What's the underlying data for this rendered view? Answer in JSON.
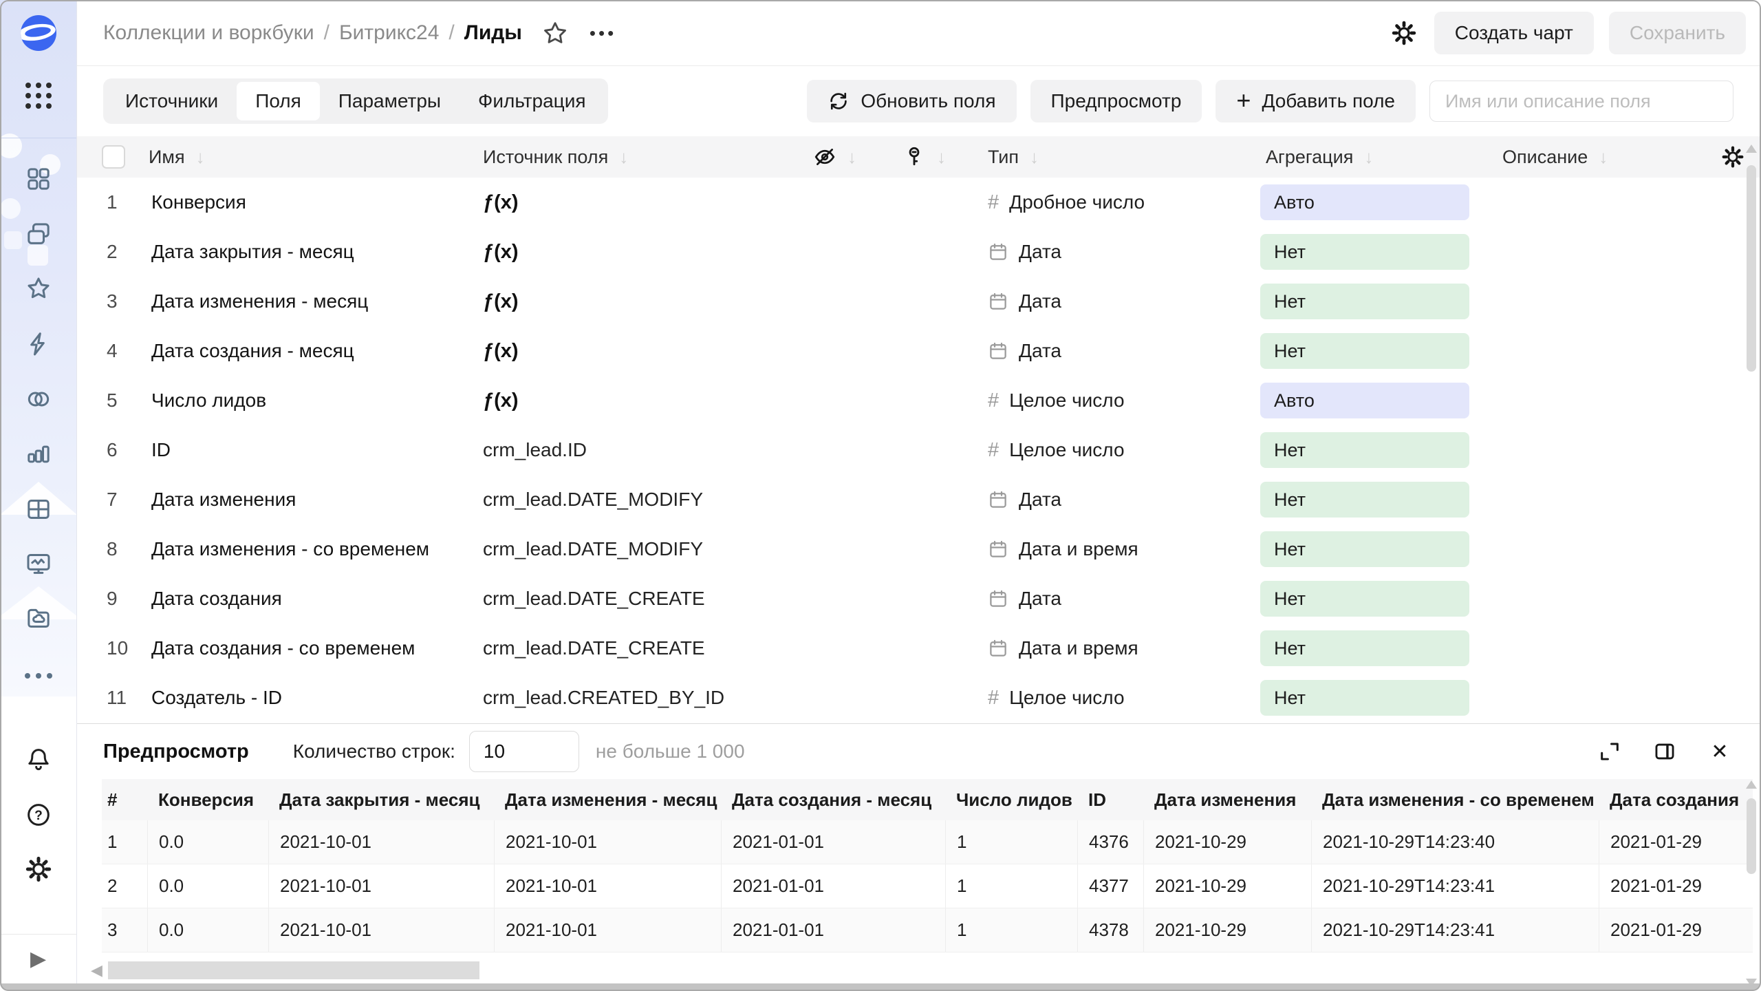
{
  "header": {
    "breadcrumb": [
      "Коллекции и воркбуки",
      "Битрикс24",
      "Лиды"
    ],
    "buttons": {
      "create_chart": "Создать чарт",
      "save": "Сохранить"
    }
  },
  "tabs": [
    {
      "label": "Источники",
      "active": false
    },
    {
      "label": "Поля",
      "active": true
    },
    {
      "label": "Параметры",
      "active": false
    },
    {
      "label": "Фильтрация",
      "active": false
    }
  ],
  "toolbar": {
    "refresh_fields": "Обновить поля",
    "preview": "Предпросмотр",
    "add_field": "Добавить поле",
    "search_placeholder": "Имя или описание поля"
  },
  "fields_table": {
    "columns": {
      "name": "Имя",
      "source": "Источник поля",
      "type": "Тип",
      "aggregation": "Агрегация",
      "description": "Описание"
    },
    "rows": [
      {
        "num": "1",
        "name": "Конверсия",
        "formula": true,
        "source": "",
        "type": "Дробное число",
        "type_icon": "number",
        "agg": "Авто",
        "agg_kind": "auto"
      },
      {
        "num": "2",
        "name": "Дата закрытия - месяц",
        "formula": true,
        "source": "",
        "type": "Дата",
        "type_icon": "calendar",
        "agg": "Нет",
        "agg_kind": "none"
      },
      {
        "num": "3",
        "name": "Дата изменения - месяц",
        "formula": true,
        "source": "",
        "type": "Дата",
        "type_icon": "calendar",
        "agg": "Нет",
        "agg_kind": "none"
      },
      {
        "num": "4",
        "name": "Дата создания - месяц",
        "formula": true,
        "source": "",
        "type": "Дата",
        "type_icon": "calendar",
        "agg": "Нет",
        "agg_kind": "none"
      },
      {
        "num": "5",
        "name": "Число лидов",
        "formula": true,
        "source": "",
        "type": "Целое число",
        "type_icon": "number",
        "agg": "Авто",
        "agg_kind": "auto"
      },
      {
        "num": "6",
        "name": "ID",
        "formula": false,
        "source": "crm_lead.ID",
        "type": "Целое число",
        "type_icon": "number",
        "agg": "Нет",
        "agg_kind": "none"
      },
      {
        "num": "7",
        "name": "Дата изменения",
        "formula": false,
        "source": "crm_lead.DATE_MODIFY",
        "type": "Дата",
        "type_icon": "calendar",
        "agg": "Нет",
        "agg_kind": "none"
      },
      {
        "num": "8",
        "name": "Дата изменения - со временем",
        "formula": false,
        "source": "crm_lead.DATE_MODIFY",
        "type": "Дата и время",
        "type_icon": "calendar",
        "agg": "Нет",
        "agg_kind": "none"
      },
      {
        "num": "9",
        "name": "Дата создания",
        "formula": false,
        "source": "crm_lead.DATE_CREATE",
        "type": "Дата",
        "type_icon": "calendar",
        "agg": "Нет",
        "agg_kind": "none"
      },
      {
        "num": "10",
        "name": "Дата создания - со временем",
        "formula": false,
        "source": "crm_lead.DATE_CREATE",
        "type": "Дата и время",
        "type_icon": "calendar",
        "agg": "Нет",
        "agg_kind": "none"
      },
      {
        "num": "11",
        "name": "Создатель - ID",
        "formula": false,
        "source": "crm_lead.CREATED_BY_ID",
        "type": "Целое число",
        "type_icon": "number",
        "agg": "Нет",
        "agg_kind": "none"
      }
    ]
  },
  "preview": {
    "title": "Предпросмотр",
    "rows_label": "Количество строк:",
    "rows_value": "10",
    "hint": "не больше 1 000",
    "columns": [
      "#",
      "Конверсия",
      "Дата закрытия - месяц",
      "Дата изменения - месяц",
      "Дата создания - месяц",
      "Число лидов",
      "ID",
      "Дата изменения",
      "Дата изменения - со временем",
      "Дата создания"
    ],
    "rows": [
      [
        "1",
        "0.0",
        "2021-10-01",
        "2021-10-01",
        "2021-01-01",
        "1",
        "4376",
        "2021-10-29",
        "2021-10-29T14:23:40",
        "2021-01-29"
      ],
      [
        "2",
        "0.0",
        "2021-10-01",
        "2021-10-01",
        "2021-01-01",
        "1",
        "4377",
        "2021-10-29",
        "2021-10-29T14:23:41",
        "2021-01-29"
      ],
      [
        "3",
        "0.0",
        "2021-10-01",
        "2021-10-01",
        "2021-01-01",
        "1",
        "4378",
        "2021-10-29",
        "2021-10-29T14:23:41",
        "2021-01-29"
      ]
    ]
  },
  "icons": {
    "sort": "↓",
    "plus": "+",
    "formula": "ƒ(x)",
    "hash": "#",
    "close": "✕",
    "scroll_left": "◀",
    "play": "▶",
    "breadcrumb_more": "•••"
  },
  "colors": {
    "accent": "#3b66f0",
    "agg_auto_bg": "#e3e6fb",
    "agg_none_bg": "#def1e2",
    "sidebar_bg": "#dfe5f8"
  }
}
